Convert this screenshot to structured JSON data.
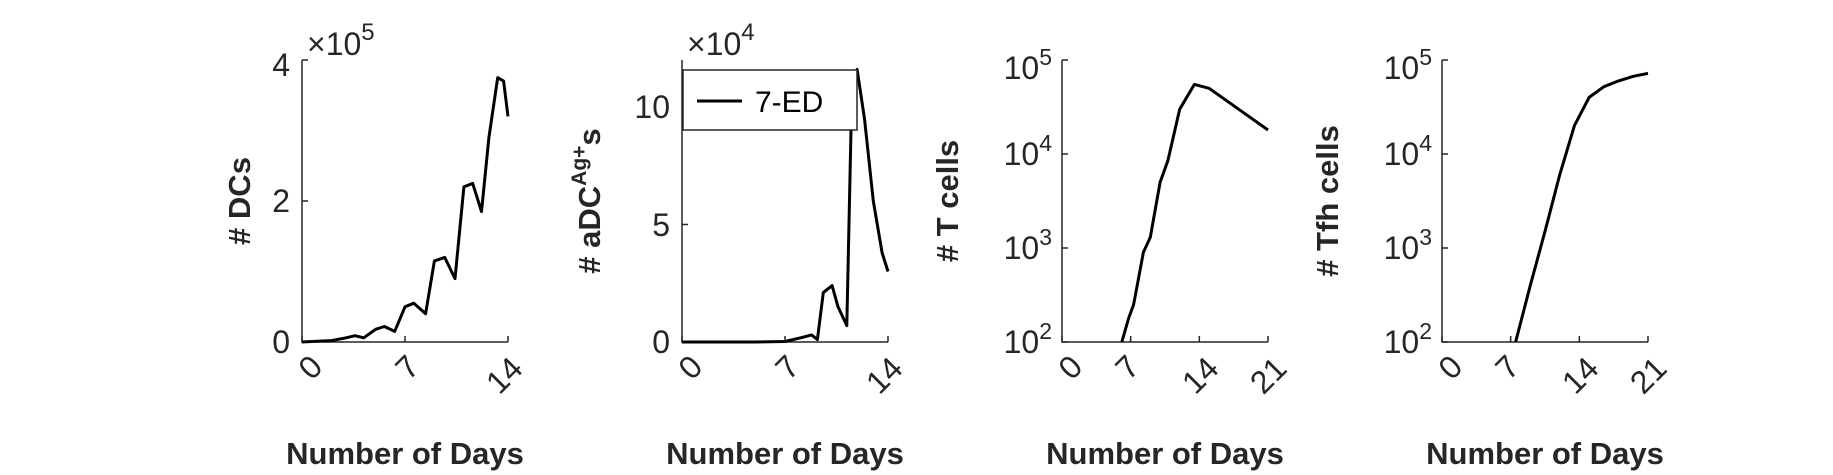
{
  "chart_data": [
    {
      "type": "line",
      "xlabel": "Number of Days",
      "ylabel": "# DCs",
      "y_multiplier_base": "×10",
      "y_multiplier_exp": "5",
      "xlim": [
        0,
        14
      ],
      "ylim": [
        0,
        4
      ],
      "xticks": [
        "0",
        "7",
        "14"
      ],
      "yticks": [
        "0",
        "2",
        "4"
      ],
      "series": [
        {
          "color": "#000000",
          "x": [
            0,
            1,
            2,
            3,
            3.6,
            4.2,
            5,
            5.6,
            6.3,
            7,
            7.6,
            8.4,
            9,
            9.7,
            10.4,
            11,
            11.6,
            12.2,
            12.7,
            13.3,
            13.7,
            14
          ],
          "y": [
            0,
            0.01,
            0.02,
            0.06,
            0.09,
            0.06,
            0.18,
            0.22,
            0.15,
            0.5,
            0.55,
            0.4,
            1.15,
            1.2,
            0.9,
            2.2,
            2.25,
            1.85,
            2.9,
            3.75,
            3.7,
            3.2
          ]
        }
      ]
    },
    {
      "type": "line",
      "xlabel": "Number of Days",
      "ylabel": "# aDC",
      "ylabel_sup": "Ag+",
      "ylabel_suffix": "s",
      "y_multiplier_base": "×10",
      "y_multiplier_exp": "4",
      "xlim": [
        0,
        14
      ],
      "ylim": [
        0,
        12
      ],
      "xticks": [
        "0",
        "7",
        "14"
      ],
      "yticks": [
        "0",
        "5",
        "10"
      ],
      "legend": {
        "position": "top-left",
        "entries": [
          "7-ED"
        ]
      },
      "series": [
        {
          "color": "#000000",
          "x": [
            0,
            5,
            7,
            8.2,
            8.8,
            9.2,
            9.6,
            10.2,
            10.6,
            11.2,
            11.55,
            11.9,
            12.4,
            13,
            13.6,
            14
          ],
          "y": [
            0,
            0,
            0.02,
            0.2,
            0.3,
            0.1,
            2.1,
            2.4,
            1.5,
            0.7,
            11.0,
            11.6,
            9.5,
            6.0,
            3.8,
            3.0
          ]
        }
      ]
    },
    {
      "type": "line",
      "scale": "log",
      "xlabel": "Number of Days",
      "ylabel": "# T cells",
      "xlim": [
        0,
        21
      ],
      "ylim": [
        100,
        100000
      ],
      "xticks": [
        "0",
        "7",
        "14",
        "21"
      ],
      "yticks_base": [
        "10",
        "10",
        "10",
        "10"
      ],
      "yticks_exp": [
        "2",
        "3",
        "4",
        "5"
      ],
      "series": [
        {
          "color": "#000000",
          "x": [
            6.1,
            6.8,
            7.3,
            8.3,
            9,
            10,
            10.8,
            12,
            13.5,
            15,
            18,
            21
          ],
          "y": [
            100,
            180,
            250,
            900,
            1300,
            5000,
            8500,
            30000,
            55000,
            50000,
            30000,
            18000
          ]
        }
      ]
    },
    {
      "type": "line",
      "scale": "log",
      "xlabel": "Number of Days",
      "ylabel": "# Tfh cells",
      "xlim": [
        0,
        21
      ],
      "ylim": [
        100,
        100000
      ],
      "xticks": [
        "0",
        "7",
        "14",
        "21"
      ],
      "yticks_base": [
        "10",
        "10",
        "10",
        "10"
      ],
      "yticks_exp": [
        "2",
        "3",
        "4",
        "5"
      ],
      "series": [
        {
          "color": "#000000",
          "x": [
            7.5,
            9,
            10.5,
            12,
            13.5,
            15,
            16.5,
            18,
            19.5,
            21
          ],
          "y": [
            100,
            400,
            1500,
            6000,
            20000,
            40000,
            52000,
            60000,
            67000,
            72000
          ]
        }
      ]
    }
  ]
}
